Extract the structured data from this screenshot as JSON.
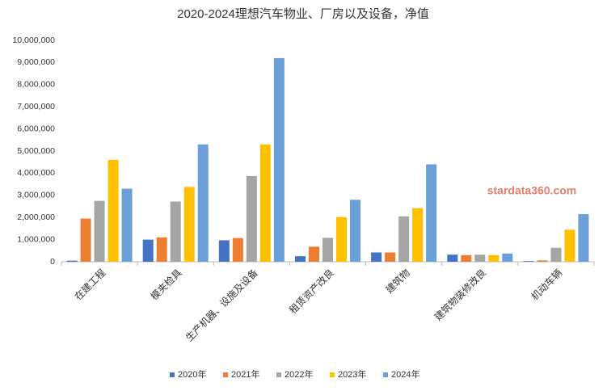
{
  "chart_data": {
    "type": "bar",
    "title": "2020-2024理想汽车物业、厂房以及设备，净值",
    "categories": [
      "在建工程",
      "模夹检具",
      "生产机器、设施及设备",
      "租赁资产改良",
      "建筑物",
      "建筑物装修改良",
      "机动车辆"
    ],
    "series": [
      {
        "name": "2020年",
        "color": "#4472c4",
        "values": [
          50000,
          1000000,
          970000,
          250000,
          420000,
          320000,
          30000
        ]
      },
      {
        "name": "2021年",
        "color": "#ed7d31",
        "values": [
          1950000,
          1100000,
          1070000,
          680000,
          420000,
          300000,
          60000
        ]
      },
      {
        "name": "2022年",
        "color": "#a5a5a5",
        "values": [
          2750000,
          2720000,
          3870000,
          1080000,
          2050000,
          320000,
          630000
        ]
      },
      {
        "name": "2023年",
        "color": "#ffc000",
        "values": [
          4600000,
          3380000,
          5300000,
          2020000,
          2420000,
          300000,
          1450000
        ]
      },
      {
        "name": "2024年",
        "color": "#6a9fd8",
        "values": [
          3300000,
          5300000,
          9200000,
          2800000,
          4400000,
          370000,
          2150000
        ]
      }
    ],
    "ylim": [
      0,
      10000000
    ],
    "yticks": [
      0,
      {
        "value": 1000000,
        "label": "1,000,000"
      },
      {
        "value": 2000000,
        "label": "2,000,000"
      },
      {
        "value": 3000000,
        "label": "3,000,000"
      },
      {
        "value": 4000000,
        "label": "4,000,000"
      },
      {
        "value": 5000000,
        "label": "5,000,000"
      },
      {
        "value": 6000000,
        "label": "6,000,000"
      },
      {
        "value": 7000000,
        "label": "7,000,000"
      },
      {
        "value": 8000000,
        "label": "8,000,000"
      },
      {
        "value": 9000000,
        "label": "9,000,000"
      },
      {
        "value": 10000000,
        "label": "10,000,000"
      }
    ],
    "grid": false,
    "legend": "bottom",
    "watermark": "stardata360.com"
  }
}
